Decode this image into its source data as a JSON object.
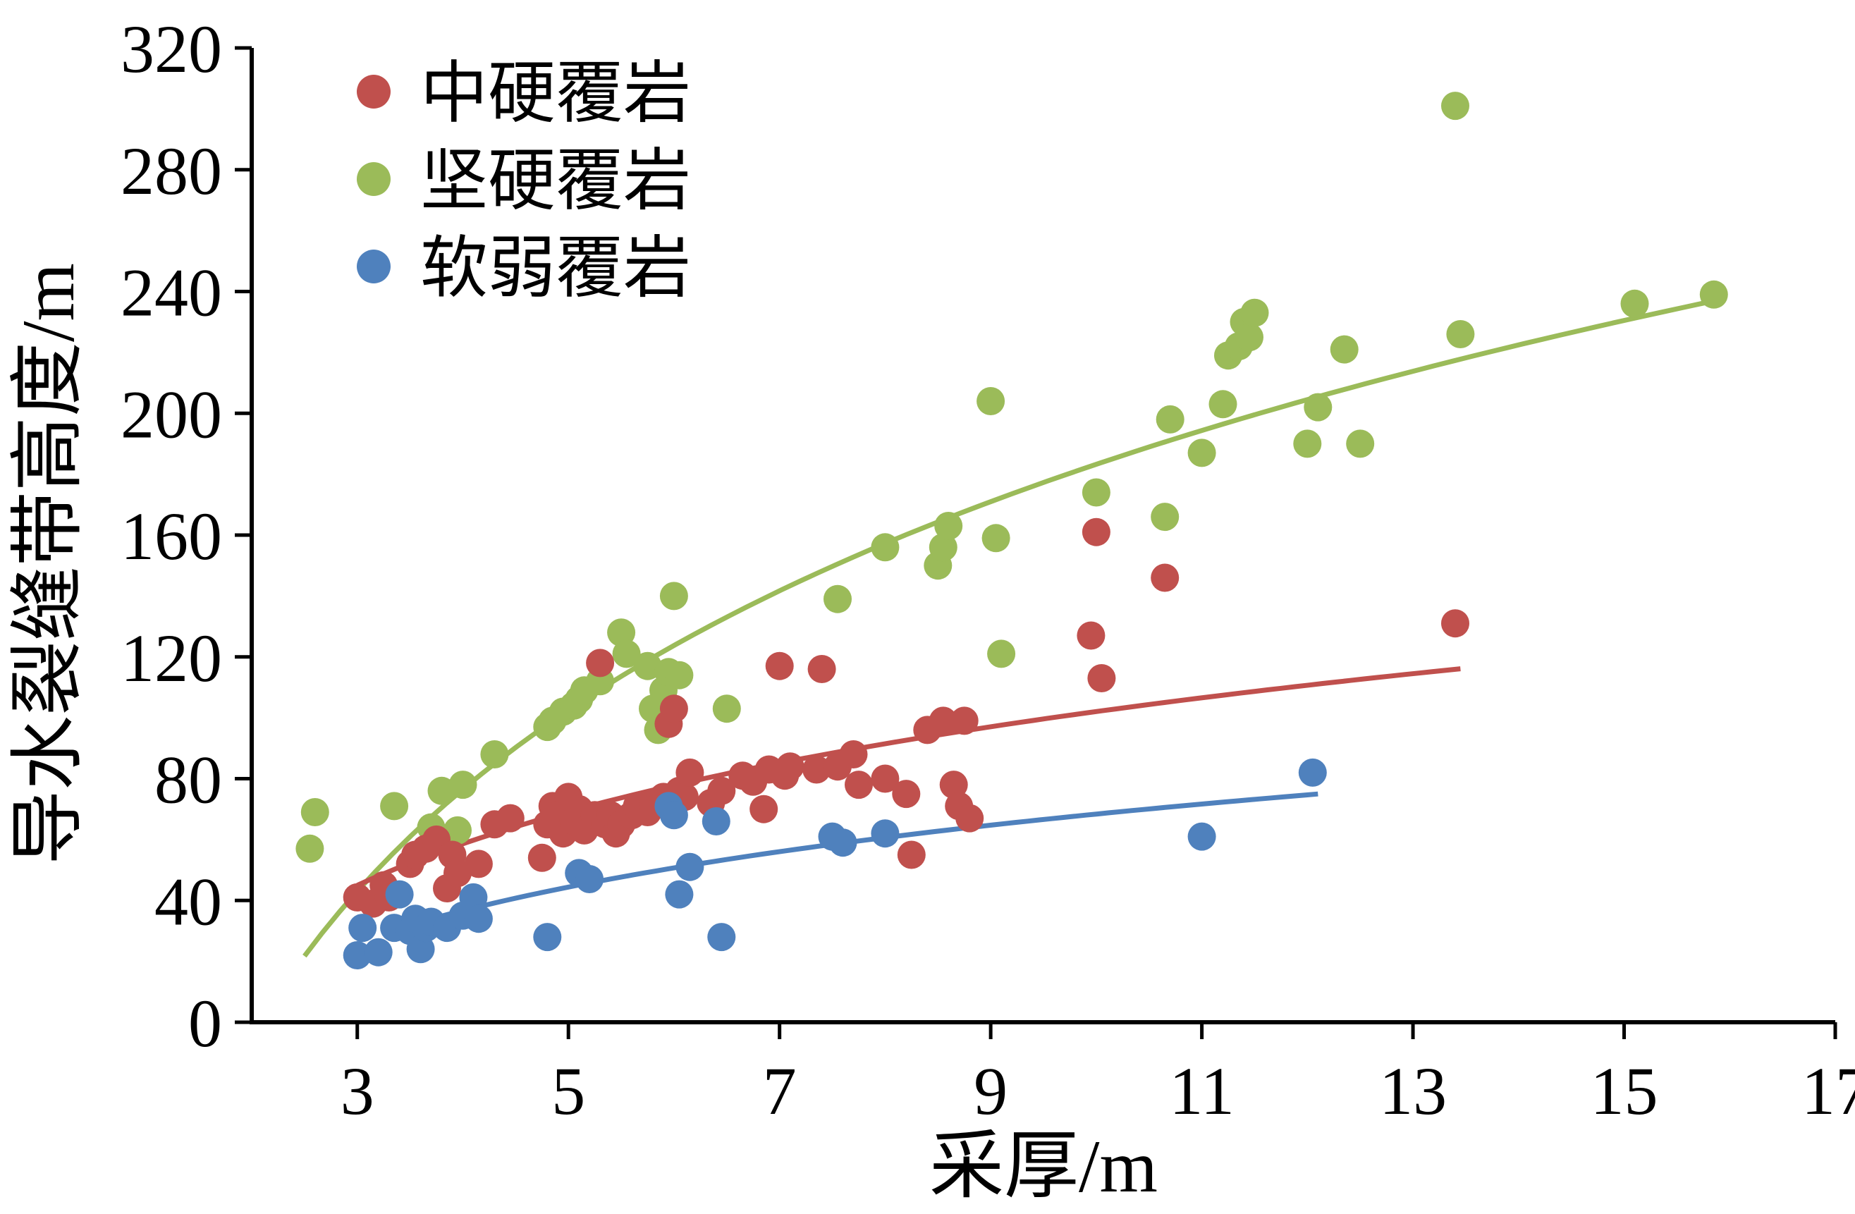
{
  "chart_data": {
    "type": "scatter",
    "title": "",
    "xlabel": "采厚/m",
    "ylabel": "导水裂缝带高度/m",
    "xlim": [
      2,
      17
    ],
    "ylim": [
      0,
      320
    ],
    "xticks": [
      3,
      5,
      7,
      9,
      11,
      13,
      15,
      17
    ],
    "yticks": [
      0,
      40,
      80,
      120,
      160,
      200,
      240,
      280,
      320
    ],
    "grid": false,
    "legend_position": "top-left-inside",
    "axis_color": "#000000",
    "series": [
      {
        "id": "medium-hard",
        "name": "中硬覆岩",
        "color": "#C0504D",
        "marker": "circle",
        "fit": {
          "type": "log",
          "a": 47.4,
          "b": -7.1,
          "range": [
            3.0,
            13.45
          ]
        },
        "points": [
          [
            3.0,
            41
          ],
          [
            3.15,
            39
          ],
          [
            3.25,
            45
          ],
          [
            3.3,
            41
          ],
          [
            3.5,
            52
          ],
          [
            3.55,
            55
          ],
          [
            3.65,
            57
          ],
          [
            3.75,
            60
          ],
          [
            3.85,
            44
          ],
          [
            3.9,
            55
          ],
          [
            3.95,
            49
          ],
          [
            4.15,
            52
          ],
          [
            4.3,
            65
          ],
          [
            4.45,
            67
          ],
          [
            4.75,
            54
          ],
          [
            4.8,
            65
          ],
          [
            4.85,
            71
          ],
          [
            4.9,
            68
          ],
          [
            4.95,
            62
          ],
          [
            5.0,
            74
          ],
          [
            5.05,
            66
          ],
          [
            5.1,
            70
          ],
          [
            5.15,
            63
          ],
          [
            5.25,
            68
          ],
          [
            5.3,
            118
          ],
          [
            5.35,
            65
          ],
          [
            5.4,
            68
          ],
          [
            5.45,
            62
          ],
          [
            5.5,
            65
          ],
          [
            5.6,
            68
          ],
          [
            5.65,
            71
          ],
          [
            5.75,
            69
          ],
          [
            5.8,
            71
          ],
          [
            5.9,
            74
          ],
          [
            5.95,
            98
          ],
          [
            6.0,
            103
          ],
          [
            6.05,
            76
          ],
          [
            6.1,
            74
          ],
          [
            6.15,
            82
          ],
          [
            6.35,
            72
          ],
          [
            6.45,
            76
          ],
          [
            6.65,
            81
          ],
          [
            6.75,
            79
          ],
          [
            6.85,
            70
          ],
          [
            6.9,
            83
          ],
          [
            7.0,
            117
          ],
          [
            7.05,
            81
          ],
          [
            7.1,
            84
          ],
          [
            7.35,
            83
          ],
          [
            7.4,
            116
          ],
          [
            7.55,
            84
          ],
          [
            7.7,
            88
          ],
          [
            7.75,
            78
          ],
          [
            8.0,
            80
          ],
          [
            8.2,
            75
          ],
          [
            8.25,
            55
          ],
          [
            8.4,
            96
          ],
          [
            8.55,
            99
          ],
          [
            8.65,
            78
          ],
          [
            8.7,
            71
          ],
          [
            8.75,
            99
          ],
          [
            8.8,
            67
          ],
          [
            9.95,
            127
          ],
          [
            10.0,
            161
          ],
          [
            10.05,
            113
          ],
          [
            10.65,
            146
          ],
          [
            13.4,
            131
          ]
        ]
      },
      {
        "id": "hard",
        "name": "坚硬覆岩",
        "color": "#9BBB59",
        "marker": "circle",
        "fit": {
          "type": "log",
          "a": 116.5,
          "b": -85.0,
          "range": [
            2.5,
            15.9
          ]
        },
        "points": [
          [
            2.55,
            57
          ],
          [
            2.6,
            69
          ],
          [
            3.35,
            71
          ],
          [
            3.7,
            64
          ],
          [
            3.8,
            76
          ],
          [
            3.95,
            63
          ],
          [
            4.0,
            78
          ],
          [
            4.3,
            88
          ],
          [
            4.8,
            97
          ],
          [
            4.85,
            99
          ],
          [
            4.95,
            102
          ],
          [
            5.05,
            104
          ],
          [
            5.1,
            106
          ],
          [
            5.15,
            109
          ],
          [
            5.3,
            112
          ],
          [
            5.5,
            128
          ],
          [
            5.55,
            121
          ],
          [
            5.75,
            117
          ],
          [
            5.8,
            103
          ],
          [
            5.85,
            96
          ],
          [
            5.9,
            109
          ],
          [
            5.95,
            115
          ],
          [
            6.0,
            140
          ],
          [
            6.05,
            114
          ],
          [
            6.5,
            103
          ],
          [
            7.55,
            139
          ],
          [
            8.0,
            156
          ],
          [
            8.5,
            150
          ],
          [
            8.55,
            156
          ],
          [
            8.6,
            163
          ],
          [
            9.0,
            204
          ],
          [
            9.05,
            159
          ],
          [
            9.1,
            121
          ],
          [
            10.0,
            174
          ],
          [
            10.65,
            166
          ],
          [
            10.7,
            198
          ],
          [
            11.0,
            187
          ],
          [
            11.2,
            203
          ],
          [
            11.25,
            219
          ],
          [
            11.35,
            222
          ],
          [
            11.4,
            230
          ],
          [
            11.45,
            225
          ],
          [
            11.5,
            233
          ],
          [
            12.0,
            190
          ],
          [
            12.1,
            202
          ],
          [
            12.35,
            221
          ],
          [
            12.5,
            190
          ],
          [
            13.4,
            301
          ],
          [
            13.45,
            226
          ],
          [
            15.1,
            236
          ],
          [
            15.85,
            239
          ]
        ]
      },
      {
        "id": "soft",
        "name": "软弱覆岩",
        "color": "#4F81BD",
        "marker": "circle",
        "fit": {
          "type": "log",
          "a": 34.6,
          "b": -11.3,
          "range": [
            3.3,
            12.1
          ]
        },
        "points": [
          [
            3.0,
            22
          ],
          [
            3.05,
            31
          ],
          [
            3.2,
            23
          ],
          [
            3.35,
            31
          ],
          [
            3.4,
            42
          ],
          [
            3.5,
            30
          ],
          [
            3.55,
            34
          ],
          [
            3.6,
            24
          ],
          [
            3.65,
            31
          ],
          [
            3.7,
            33
          ],
          [
            3.85,
            31
          ],
          [
            4.0,
            35
          ],
          [
            4.1,
            41
          ],
          [
            4.15,
            34
          ],
          [
            4.8,
            28
          ],
          [
            5.1,
            49
          ],
          [
            5.2,
            47
          ],
          [
            5.95,
            71
          ],
          [
            6.0,
            68
          ],
          [
            6.05,
            42
          ],
          [
            6.15,
            51
          ],
          [
            6.4,
            66
          ],
          [
            6.45,
            28
          ],
          [
            7.5,
            61
          ],
          [
            7.6,
            59
          ],
          [
            8.0,
            62
          ],
          [
            11.0,
            61
          ],
          [
            12.05,
            82
          ]
        ]
      }
    ]
  }
}
